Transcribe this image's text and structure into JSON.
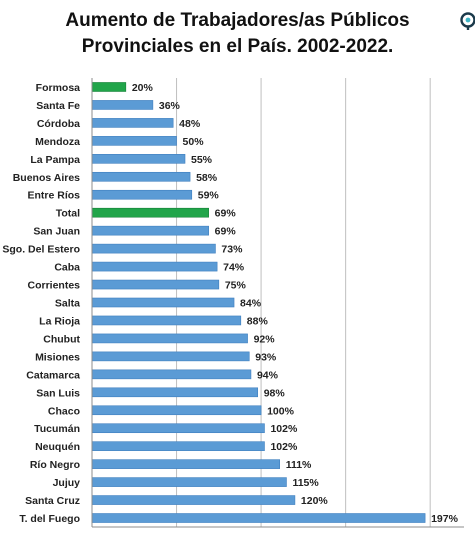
{
  "chart_data": {
    "type": "bar",
    "orientation": "horizontal",
    "title": "Aumento de Trabajadores/as  Públicos Provinciales  en el País. 2002-2022.",
    "title_lines": [
      "Aumento de Trabajadores/as  Públicos",
      "Provinciales  en el País. 2002-2022."
    ],
    "categories": [
      "Formosa",
      "Santa Fe",
      "Córdoba",
      "Mendoza",
      "La Pampa",
      "Buenos Aires",
      "Entre Ríos",
      "Total",
      "San Juan",
      "Sgo. Del Estero",
      "Caba",
      "Corrientes",
      "Salta",
      "La Rioja",
      "Chubut",
      "Misiones",
      "Catamarca",
      "San Luis",
      "Chaco",
      "Tucumán",
      "Neuquén",
      "Río Negro",
      "Jujuy",
      "Santa Cruz",
      "T. del Fuego"
    ],
    "values": [
      20,
      36,
      48,
      50,
      55,
      58,
      59,
      69,
      69,
      73,
      74,
      75,
      84,
      88,
      92,
      93,
      94,
      98,
      100,
      102,
      102,
      111,
      115,
      120,
      197
    ],
    "value_labels": [
      "20%",
      "36%",
      "48%",
      "50%",
      "55%",
      "58%",
      "59%",
      "69%",
      "69%",
      "73%",
      "74%",
      "75%",
      "84%",
      "88%",
      "92%",
      "93%",
      "94%",
      "98%",
      "100%",
      "102%",
      "102%",
      "111%",
      "115%",
      "120%",
      "197%"
    ],
    "highlighted": [
      "Formosa",
      "Total"
    ],
    "xlim": [
      0,
      220
    ],
    "xlabel": "",
    "ylabel": "",
    "grid": true,
    "legend": "none",
    "colors": {
      "bar": "#5b9bd5",
      "bar_edge": "#3f7fbf",
      "highlight": "#21a54a",
      "highlight_edge": "#168038",
      "grid": "#bfbfbf",
      "axis": "#8c8c8c"
    }
  }
}
